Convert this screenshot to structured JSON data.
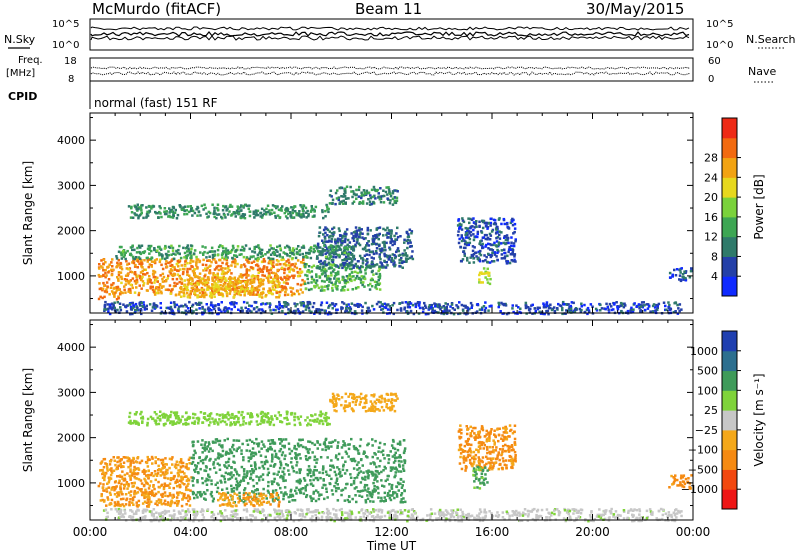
{
  "header": {
    "station": "McMurdo (fitACF)",
    "beam": "Beam 11",
    "date": "30/May/2015",
    "cpid_text": "normal (fast) 151 RF"
  },
  "status_panels": {
    "nsky_label": "N.Sky",
    "nsearch_label": "N.Search",
    "noise_ticks": [
      "10^5",
      "10^0"
    ],
    "freq_label_1": "Freq.",
    "freq_label_2": "[MHz]",
    "freq_ticks": [
      "18",
      "8"
    ],
    "nave_label": "Nave",
    "nave_ticks": [
      "60",
      "0"
    ],
    "cpid_label": "CPID"
  },
  "chart_data": [
    {
      "type": "heatmap",
      "title": "",
      "xlabel": "",
      "ylabel": "Slant Range [km]",
      "xlim": [
        0,
        24
      ],
      "ylim": [
        180,
        4600
      ],
      "x_ticks": [
        "00:00",
        "04:00",
        "08:00",
        "12:00",
        "16:00",
        "20:00",
        "00:00"
      ],
      "y_ticks": [
        "1000",
        "2000",
        "3000",
        "4000"
      ],
      "colorbar": {
        "label": "Power [dB]",
        "ticks": [
          "4",
          "8",
          "12",
          "16",
          "20",
          "24",
          "28"
        ],
        "colors": [
          "#0f2aff",
          "#2440a8",
          "#2f7a6a",
          "#3da653",
          "#7ad23b",
          "#e7d81e",
          "#f2a312",
          "#f26a10",
          "#ee2a16"
        ]
      },
      "regions": [
        {
          "t": [
            0.3,
            1.2
          ],
          "r": [
            500,
            1400
          ],
          "v": 28
        },
        {
          "t": [
            1.2,
            8.5
          ],
          "r": [
            600,
            1400
          ],
          "v": 27
        },
        {
          "t": [
            3.5,
            7.5
          ],
          "r": [
            550,
            1000
          ],
          "v": 24
        },
        {
          "t": [
            8.5,
            11.5
          ],
          "r": [
            700,
            1300
          ],
          "v": 14
        },
        {
          "t": [
            9.0,
            12.8
          ],
          "r": [
            1200,
            2100
          ],
          "v": 8
        },
        {
          "t": [
            1.0,
            10.5
          ],
          "r": [
            1400,
            1700
          ],
          "v": 13
        },
        {
          "t": [
            1.5,
            9.5
          ],
          "r": [
            2300,
            2600
          ],
          "v": 12
        },
        {
          "t": [
            9.5,
            12.2
          ],
          "r": [
            2600,
            3000
          ],
          "v": 11
        },
        {
          "t": [
            14.6,
            16.9
          ],
          "r": [
            1300,
            2300
          ],
          "v": 6
        },
        {
          "t": [
            15.4,
            15.9
          ],
          "r": [
            850,
            1200
          ],
          "v": 20
        },
        {
          "t": [
            0.5,
            23.5
          ],
          "r": [
            180,
            450
          ],
          "v": 6
        },
        {
          "t": [
            23.0,
            23.9
          ],
          "r": [
            900,
            1200
          ],
          "v": 6
        }
      ]
    },
    {
      "type": "heatmap",
      "title": "",
      "xlabel": "Time UT",
      "ylabel": "Slant Range [km]",
      "xlim": [
        0,
        24
      ],
      "ylim": [
        180,
        4600
      ],
      "x_ticks": [
        "00:00",
        "04:00",
        "08:00",
        "12:00",
        "16:00",
        "20:00",
        "00:00"
      ],
      "y_ticks": [
        "1000",
        "2000",
        "3000",
        "4000"
      ],
      "colorbar": {
        "label": "Velocity [m s⁻¹]",
        "ticks": [
          "1000",
          "500",
          "100",
          "25",
          "−25",
          "−100",
          "−500",
          "−1000"
        ],
        "colors": [
          "#1f3fb0",
          "#2c6f8f",
          "#3f9b5a",
          "#7fd33a",
          "#c7c7c7",
          "#f4a81a",
          "#f58a12",
          "#f2480f",
          "#ee1616"
        ]
      },
      "regions": [
        {
          "t": [
            0.3,
            4.0
          ],
          "r": [
            500,
            1600
          ],
          "v": -100
        },
        {
          "t": [
            4.0,
            12.5
          ],
          "r": [
            600,
            2000
          ],
          "v": 250
        },
        {
          "t": [
            5.0,
            7.5
          ],
          "r": [
            500,
            800
          ],
          "v": -80
        },
        {
          "t": [
            1.5,
            9.5
          ],
          "r": [
            2300,
            2600
          ],
          "v": 60
        },
        {
          "t": [
            9.5,
            12.2
          ],
          "r": [
            2600,
            3000
          ],
          "v": -60
        },
        {
          "t": [
            14.6,
            16.9
          ],
          "r": [
            1300,
            2300
          ],
          "v": -120
        },
        {
          "t": [
            15.2,
            15.8
          ],
          "r": [
            900,
            1400
          ],
          "v": 120
        },
        {
          "t": [
            0.5,
            23.5
          ],
          "r": [
            180,
            450
          ],
          "v": 10
        },
        {
          "t": [
            23.0,
            23.9
          ],
          "r": [
            900,
            1200
          ],
          "v": -150
        }
      ]
    }
  ]
}
